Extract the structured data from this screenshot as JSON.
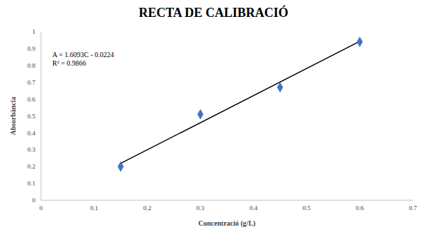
{
  "chart_data": {
    "type": "scatter",
    "title": "RECTA DE CALIBRACIÓ",
    "x_label": "Concentració (g/L)",
    "y_label": "Absorbància",
    "x": [
      0.15,
      0.3,
      0.45,
      0.6
    ],
    "values": [
      0.2,
      0.51,
      0.67,
      0.94
    ],
    "color": "#4472c4",
    "marker": "diamond",
    "trendline": {
      "x": [
        0.15,
        0.6
      ],
      "values": [
        0.219,
        0.943
      ],
      "color": "#000000"
    },
    "annotations": [
      "A = 1.6093C - 0.0224",
      "R² = 0.9866"
    ],
    "xlim": [
      0,
      0.7
    ],
    "xticks": [
      0,
      0.1,
      0.2,
      0.3,
      0.4,
      0.5,
      0.6,
      0.7
    ],
    "ylim": [
      0,
      1
    ],
    "yticks": [
      0,
      0.1,
      0.2,
      0.3,
      0.4,
      0.5,
      0.6,
      0.7,
      0.8,
      0.9,
      1
    ],
    "grid": false
  }
}
